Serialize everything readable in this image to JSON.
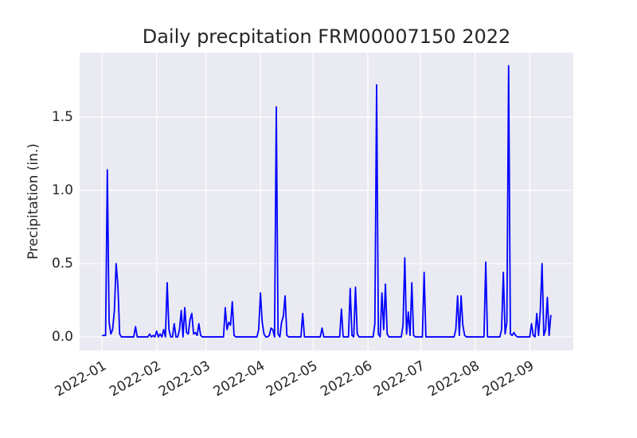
{
  "chart_data": {
    "type": "line",
    "title": "Daily precpitation FRM00007150 2022",
    "y_label": "Precipitation (in.)",
    "color": "#0000ff",
    "values": [
      0.01,
      0.01,
      0.01,
      1.14,
      0.1,
      0.02,
      0.05,
      0.18,
      0.5,
      0.35,
      0.02,
      0,
      0,
      0,
      0,
      0,
      0,
      0,
      0,
      0.07,
      0,
      0,
      0,
      0,
      0,
      0,
      0,
      0.02,
      0,
      0.01,
      0,
      0.04,
      0,
      0.02,
      0,
      0.05,
      0,
      0.37,
      0.05,
      0,
      0,
      0.09,
      0,
      0,
      0.05,
      0.18,
      0,
      0.2,
      0.03,
      0.02,
      0.12,
      0.16,
      0.02,
      0.03,
      0.01,
      0.09,
      0.01,
      0,
      0,
      0,
      0,
      0,
      0,
      0,
      0,
      0,
      0,
      0,
      0,
      0,
      0.2,
      0.05,
      0.1,
      0.08,
      0.24,
      0.01,
      0,
      0,
      0,
      0,
      0,
      0,
      0,
      0,
      0,
      0,
      0,
      0,
      0,
      0.05,
      0.3,
      0.1,
      0.02,
      0,
      0,
      0.01,
      0.06,
      0.05,
      0,
      1.57,
      0.02,
      0,
      0.1,
      0.14,
      0.28,
      0.01,
      0,
      0,
      0,
      0,
      0,
      0,
      0,
      0,
      0.16,
      0,
      0,
      0,
      0,
      0,
      0,
      0,
      0,
      0,
      0,
      0.06,
      0,
      0,
      0,
      0,
      0,
      0,
      0,
      0,
      0,
      0,
      0.19,
      0,
      0,
      0,
      0,
      0.33,
      0.01,
      0,
      0.34,
      0.02,
      0,
      0,
      0,
      0,
      0,
      0,
      0,
      0,
      0,
      0.09,
      1.72,
      0.02,
      0,
      0.3,
      0.05,
      0.36,
      0.02,
      0,
      0,
      0,
      0,
      0,
      0,
      0,
      0,
      0.08,
      0.54,
      0.02,
      0.17,
      0.01,
      0.37,
      0.01,
      0,
      0,
      0,
      0,
      0,
      0.44,
      0,
      0,
      0,
      0,
      0,
      0,
      0,
      0,
      0,
      0,
      0,
      0,
      0,
      0,
      0,
      0,
      0,
      0.05,
      0.28,
      0.01,
      0.28,
      0.08,
      0.01,
      0,
      0,
      0,
      0,
      0,
      0,
      0,
      0,
      0,
      0,
      0,
      0.51,
      0,
      0,
      0,
      0,
      0,
      0,
      0,
      0,
      0.05,
      0.44,
      0.02,
      0.1,
      1.85,
      0.02,
      0.01,
      0.03,
      0.01,
      0,
      0,
      0,
      0,
      0,
      0,
      0,
      0,
      0.09,
      0.01,
      0,
      0.16,
      0.01,
      0.18,
      0.5,
      0.01,
      0.05,
      0.27,
      0.01,
      0.15
    ],
    "xticks": [
      "2022-01",
      "2022-02",
      "2022-03",
      "2022-04",
      "2022-05",
      "2022-06",
      "2022-07",
      "2022-08",
      "2022-09"
    ],
    "ylim": [
      -0.092,
      1.94
    ],
    "yticks": [
      {
        "value": 0,
        "label": "0.0"
      },
      {
        "value": 0.5,
        "label": "0.5"
      },
      {
        "value": 1,
        "label": "1.0"
      },
      {
        "value": 1.5,
        "label": "1.5"
      }
    ],
    "grid": true
  }
}
